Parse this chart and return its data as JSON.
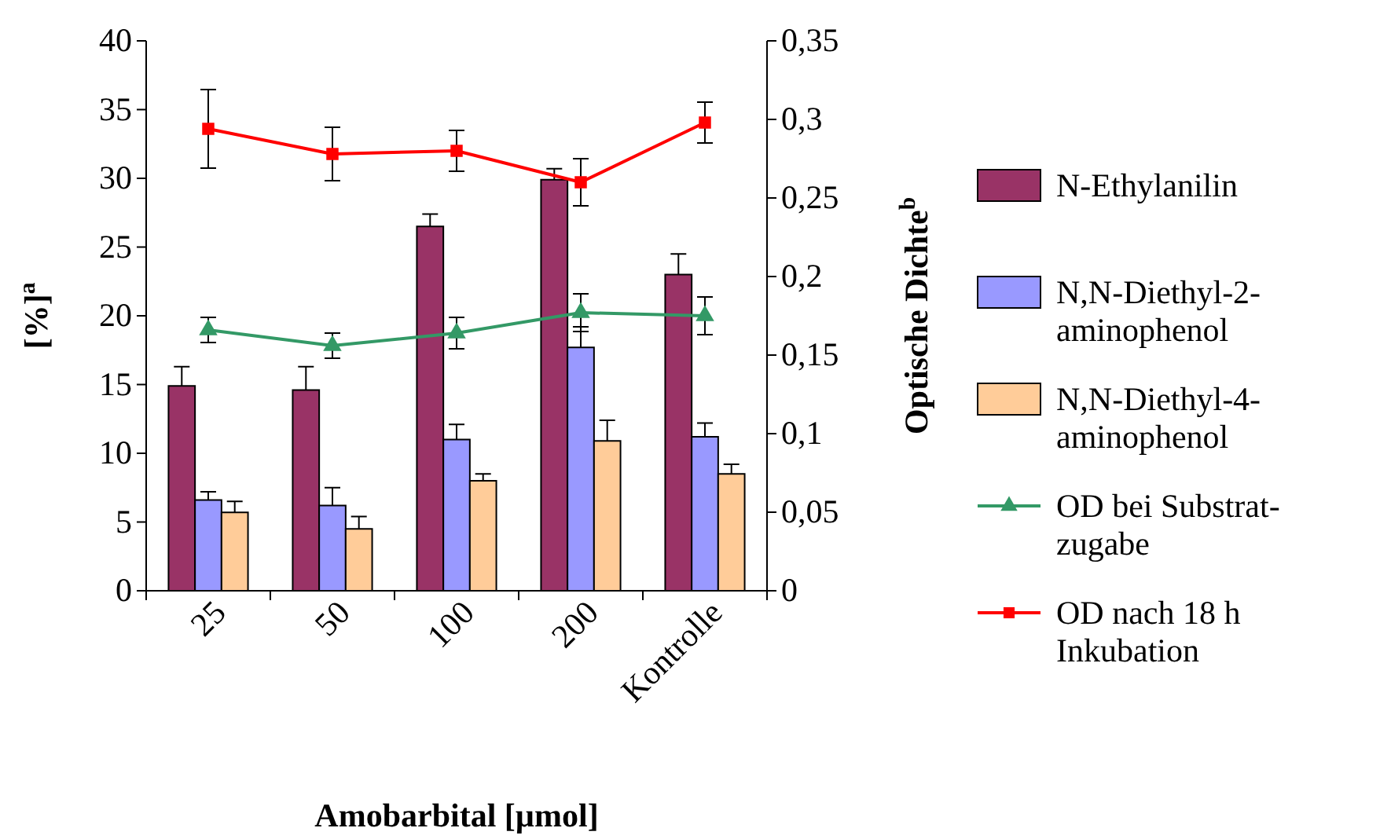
{
  "chart_data": {
    "type": "bar",
    "xlabel": "Amobarbital [µmol]",
    "ylabel": "[%]$^{a}$",
    "y2label": "Optische Dichte$^{b}$",
    "categories": [
      "25",
      "50",
      "100",
      "200",
      "Kontrolle"
    ],
    "ylim": [
      0,
      40
    ],
    "yticks": [
      0,
      5,
      10,
      15,
      20,
      25,
      30,
      35,
      40
    ],
    "y2lim": [
      0,
      0.35
    ],
    "y2ticks": [
      0,
      {
        "value": 0.05,
        "label": "0,05"
      },
      {
        "value": 0.1,
        "label": "0,1"
      },
      {
        "value": 0.15,
        "label": "0,15"
      },
      {
        "value": 0.2,
        "label": "0,2"
      },
      {
        "value": 0.25,
        "label": "0,25"
      },
      {
        "value": 0.3,
        "label": "0,3"
      },
      {
        "value": 0.35,
        "label": "0,35"
      }
    ],
    "legend": "right",
    "grid": false,
    "series": [
      {
        "name": "N-Ethylanilin",
        "color": "#993366",
        "values": [
          14.9,
          14.6,
          26.5,
          29.9,
          23
        ],
        "errors": [
          1.4,
          1.7,
          0.9,
          0.8,
          1.5
        ]
      },
      {
        "name": "N,N-Diethyl-2-aminophenol",
        "color": "#9999ff",
        "values": [
          6.6,
          6.2,
          11,
          17.7,
          11.2
        ],
        "errors": [
          0.6,
          1.3,
          1.1,
          1.5,
          1.0
        ]
      },
      {
        "name": "N,N-Diethyl-4-aminophenol",
        "color": "#ffcc99",
        "values": [
          5.7,
          4.5,
          8,
          10.9,
          8.5
        ],
        "errors": [
          0.8,
          0.9,
          0.5,
          1.5,
          0.7
        ]
      },
      {
        "name": "OD bei Substrat-zugabe",
        "type": "line",
        "axis": "y2",
        "marker": "triangle",
        "color": "#339966",
        "values": [
          0.166,
          0.156,
          0.164,
          0.177,
          0.175
        ],
        "errors": [
          0.008,
          0.008,
          0.01,
          0.012,
          0.012
        ]
      },
      {
        "name": "OD nach 18 h Inkubation",
        "type": "line",
        "axis": "y2",
        "marker": "square",
        "color": "#ff0000",
        "values": [
          0.294,
          0.278,
          0.28,
          0.26,
          0.298
        ],
        "errors": [
          0.025,
          0.017,
          0.013,
          0.015,
          0.013
        ]
      }
    ]
  }
}
